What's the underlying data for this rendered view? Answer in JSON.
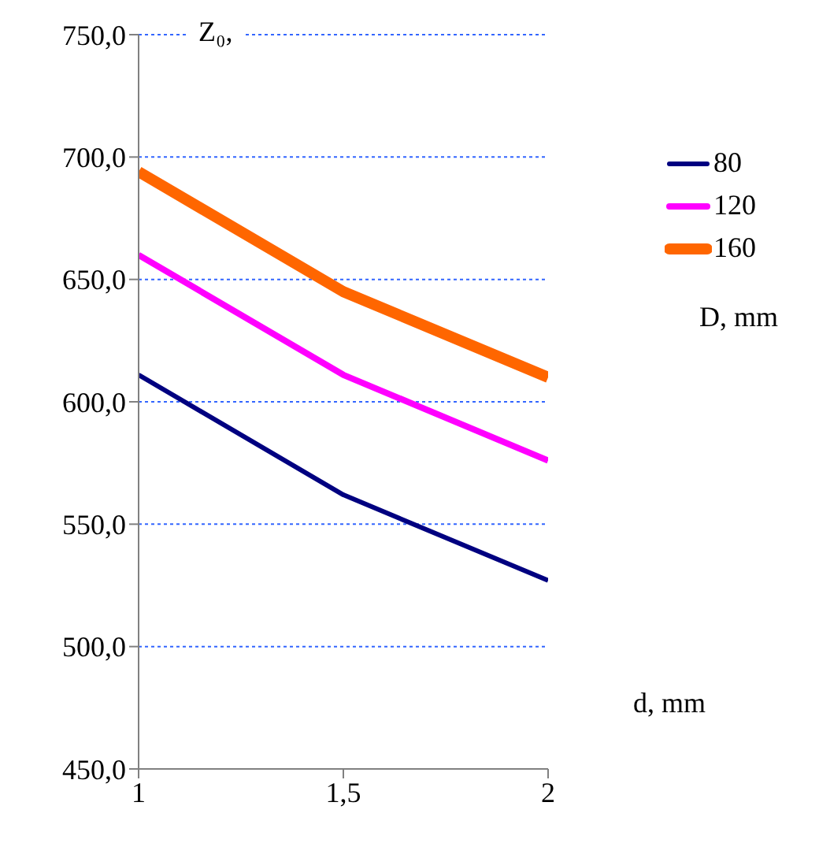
{
  "chart_data": {
    "type": "line",
    "xlabel": "d, mm",
    "ylabel": "Z₀,",
    "legend_title": "D, mm",
    "x": [
      1,
      1.5,
      2
    ],
    "series": [
      {
        "name": "80",
        "color": "#000080",
        "values": [
          611,
          562,
          527
        ]
      },
      {
        "name": "120",
        "color": "#ff00ff",
        "values": [
          660,
          611,
          576
        ]
      },
      {
        "name": "160",
        "color": "#ff6600",
        "values": [
          694,
          645,
          610
        ]
      }
    ],
    "xlim": [
      1,
      2
    ],
    "xticks": [
      1,
      {
        "value": 1.5,
        "label": "1,5"
      },
      2
    ],
    "ylim": [
      450,
      750
    ],
    "yticks": [
      {
        "value": 450,
        "label": "450,0"
      },
      {
        "value": 500,
        "label": "500,0"
      },
      {
        "value": 550,
        "label": "550,0"
      },
      {
        "value": 600,
        "label": "600,0"
      },
      {
        "value": 650,
        "label": "650,0"
      },
      {
        "value": 700,
        "label": "700,0"
      },
      {
        "value": 750,
        "label": "750,0"
      }
    ],
    "grid": "y",
    "legend": "right",
    "marker": "none",
    "line_style": "solid"
  }
}
